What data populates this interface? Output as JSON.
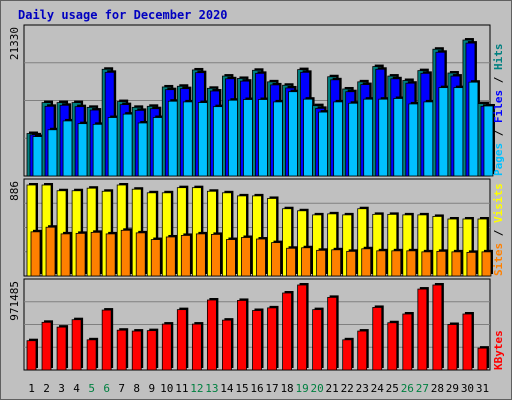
{
  "chart_data": {
    "type": "bar",
    "title": "Daily usage for December 2020",
    "title_color": "#0000c0",
    "days": [
      {
        "label": "1",
        "weekend": false
      },
      {
        "label": "2",
        "weekend": false
      },
      {
        "label": "3",
        "weekend": false
      },
      {
        "label": "4",
        "weekend": false
      },
      {
        "label": "5",
        "weekend": true
      },
      {
        "label": "6",
        "weekend": true
      },
      {
        "label": "7",
        "weekend": false
      },
      {
        "label": "8",
        "weekend": false
      },
      {
        "label": "9",
        "weekend": false
      },
      {
        "label": "10",
        "weekend": false
      },
      {
        "label": "11",
        "weekend": false
      },
      {
        "label": "12",
        "weekend": true
      },
      {
        "label": "13",
        "weekend": true
      },
      {
        "label": "14",
        "weekend": false
      },
      {
        "label": "15",
        "weekend": false
      },
      {
        "label": "16",
        "weekend": false
      },
      {
        "label": "17",
        "weekend": false
      },
      {
        "label": "18",
        "weekend": false
      },
      {
        "label": "19",
        "weekend": true
      },
      {
        "label": "20",
        "weekend": true
      },
      {
        "label": "21",
        "weekend": false
      },
      {
        "label": "22",
        "weekend": false
      },
      {
        "label": "23",
        "weekend": false
      },
      {
        "label": "24",
        "weekend": false
      },
      {
        "label": "25",
        "weekend": false
      },
      {
        "label": "26",
        "weekend": true
      },
      {
        "label": "27",
        "weekend": true
      },
      {
        "label": "28",
        "weekend": false
      },
      {
        "label": "29",
        "weekend": false
      },
      {
        "label": "30",
        "weekend": false
      },
      {
        "label": "31",
        "weekend": false
      }
    ],
    "weekday_label_color": "#000000",
    "weekend_label_color": "#008040",
    "panels": [
      {
        "id": "hits",
        "max_label": "21330",
        "ymax": 21330,
        "legend": [
          {
            "text": "Pages",
            "color": "#00c0ff"
          },
          {
            "text": "Files",
            "color": "#0000ff"
          },
          {
            "text": "Hits",
            "color": "#008080"
          }
        ],
        "legend_separator": " / ",
        "series": [
          {
            "name": "Hits",
            "color": "#008080",
            "values": [
              6250,
              10800,
              10800,
              10800,
              10100,
              15700,
              10950,
              10100,
              10250,
              13100,
              13200,
              15600,
              12900,
              14700,
              14350,
              15550,
              13850,
              13350,
              15650,
              10350,
              14600,
              12800,
              13850,
              16100,
              14700,
              14050,
              15500,
              18650,
              15150,
              20000,
              10650
            ]
          },
          {
            "name": "Files",
            "color": "#0000ff",
            "values": [
              6050,
              10250,
              10400,
              10200,
              9700,
              15250,
              10500,
              9650,
              9900,
              12700,
              12850,
              15200,
              12500,
              14300,
              13950,
              15100,
              13400,
              12950,
              15250,
              9950,
              14150,
              12400,
              13450,
              15700,
              14300,
              13650,
              15100,
              18200,
              14700,
              19550,
              10250
            ]
          },
          {
            "name": "Pages",
            "color": "#00c0ff",
            "values": [
              5800,
              6800,
              8100,
              7700,
              7600,
              8600,
              9100,
              7800,
              8600,
              11000,
              10900,
              10800,
              10200,
              11150,
              11250,
              11250,
              10900,
              12400,
              11300,
              9400,
              10900,
              10700,
              11300,
              11300,
              11400,
              10600,
              10900,
              13000,
              13000,
              13800,
              10300
            ]
          }
        ]
      },
      {
        "id": "visits",
        "max_label": "886",
        "ymax": 886,
        "legend": [
          {
            "text": "Sites",
            "color": "#ff8000"
          },
          {
            "text": "Visits",
            "color": "#ffff00"
          }
        ],
        "legend_separator": " / ",
        "series": [
          {
            "name": "Visits",
            "color": "#ffff00",
            "values": [
              886,
              886,
              830,
              830,
              855,
              825,
              886,
              845,
              810,
              810,
              860,
              860,
              825,
              810,
              780,
              780,
              755,
              655,
              635,
              595,
              605,
              595,
              655,
              600,
              600,
              595,
              595,
              580,
              555,
              555,
              555
            ]
          },
          {
            "name": "Sites",
            "color": "#ff8000",
            "values": [
              430,
              475,
              410,
              415,
              425,
              410,
              445,
              420,
              355,
              380,
              395,
              410,
              405,
              355,
              375,
              360,
              325,
              270,
              275,
              250,
              255,
              240,
              265,
              245,
              245,
              245,
              235,
              240,
              235,
              230,
              235
            ]
          }
        ]
      },
      {
        "id": "kbytes",
        "max_label": "971485",
        "ymax": 971485,
        "legend": [
          {
            "text": "KBytes",
            "color": "#ff0000"
          }
        ],
        "legend_separator": " / ",
        "series": [
          {
            "name": "KBytes",
            "color": "#ff0000",
            "values": [
              335000,
              545000,
              490000,
              575000,
              345000,
              685000,
              455000,
              445000,
              450000,
              525000,
              690000,
              525000,
              800000,
              570000,
              795000,
              680000,
              710000,
              880000,
              986000,
              690000,
              830000,
              345000,
              445000,
              715000,
              540000,
              640000,
              925000,
              1000000,
              520000,
              640000,
              250000
            ]
          }
        ]
      }
    ]
  }
}
